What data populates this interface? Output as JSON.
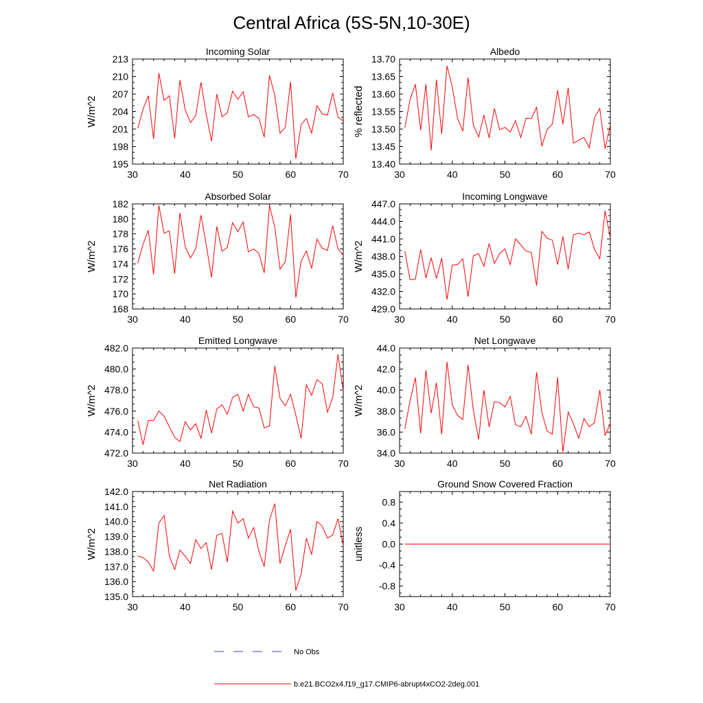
{
  "figure": {
    "title": "Central Africa (5S-5N,10-30E)",
    "line_color": "#ff0000",
    "obs_color": "#3a3acc",
    "legend": {
      "obs_label": "No Obs",
      "model_label": "b.e21.BCO2x4.f19_g17.CMIP6-abrupt4xCO2-2deg.001"
    }
  },
  "chart_data": [
    {
      "type": "line",
      "title": "Incoming Solar",
      "ylabel": "W/m^2",
      "xlim": [
        30,
        70
      ],
      "ylim": [
        195,
        213
      ],
      "xticks": [
        30,
        40,
        50,
        60,
        70
      ],
      "xtick_labels": [
        "30",
        "40",
        "50",
        "60",
        "70"
      ],
      "yticks": [
        195,
        198,
        201,
        204,
        207,
        210,
        213
      ],
      "ytick_labels": [
        "195",
        "198",
        "201",
        "204",
        "207",
        "210",
        "213"
      ],
      "x": [
        31,
        32,
        33,
        34,
        35,
        36,
        37,
        38,
        39,
        40,
        41,
        42,
        43,
        44,
        45,
        46,
        47,
        48,
        49,
        50,
        51,
        52,
        53,
        54,
        55,
        56,
        57,
        58,
        59,
        60,
        61,
        62,
        63,
        64,
        65,
        66,
        67,
        68,
        69,
        70
      ],
      "series": [
        {
          "name": "b.e21.BCO2x4.f19_g17.CMIP6-abrupt4xCO2-2deg.001",
          "values": [
            201.1,
            204.4,
            206.7,
            199.3,
            210.6,
            205.9,
            206.7,
            199.4,
            209.4,
            204.3,
            202.1,
            203.3,
            209.0,
            203.5,
            198.9,
            207.0,
            203.1,
            203.8,
            207.5,
            206.1,
            207.4,
            203.1,
            203.5,
            202.8,
            199.6,
            210.2,
            206.8,
            200.3,
            201.3,
            209.1,
            195.9,
            201.8,
            202.8,
            200.3,
            205.0,
            203.6,
            203.4,
            207.2,
            203.0,
            202.4
          ]
        }
      ]
    },
    {
      "type": "line",
      "title": "Albedo",
      "ylabel": "% reflected",
      "xlim": [
        30,
        70
      ],
      "ylim": [
        13.4,
        13.7
      ],
      "xticks": [
        30,
        40,
        50,
        60,
        70
      ],
      "xtick_labels": [
        "30",
        "40",
        "50",
        "60",
        "70"
      ],
      "yticks": [
        13.4,
        13.45,
        13.5,
        13.55,
        13.6,
        13.65,
        13.7
      ],
      "ytick_labels": [
        "13.40",
        "13.45",
        "13.50",
        "13.55",
        "13.60",
        "13.65",
        "13.70"
      ],
      "x": [
        31,
        32,
        33,
        34,
        35,
        36,
        37,
        38,
        39,
        40,
        41,
        42,
        43,
        44,
        45,
        46,
        47,
        48,
        49,
        50,
        51,
        52,
        53,
        54,
        55,
        56,
        57,
        58,
        59,
        60,
        61,
        62,
        63,
        64,
        65,
        66,
        67,
        68,
        69,
        70
      ],
      "series": [
        {
          "name": "b.e21.BCO2x4.f19_g17.CMIP6-abrupt4xCO2-2deg.001",
          "values": [
            13.503,
            13.585,
            13.628,
            13.497,
            13.628,
            13.439,
            13.641,
            13.486,
            13.681,
            13.621,
            13.531,
            13.494,
            13.647,
            13.512,
            13.477,
            13.54,
            13.475,
            13.559,
            13.498,
            13.505,
            13.491,
            13.524,
            13.476,
            13.531,
            13.53,
            13.562,
            13.451,
            13.499,
            13.514,
            13.611,
            13.514,
            13.618,
            13.46,
            13.468,
            13.476,
            13.447,
            13.533,
            13.559,
            13.444,
            13.511
          ]
        }
      ]
    },
    {
      "type": "line",
      "title": "Absorbed Solar",
      "ylabel": "W/m^2",
      "xlim": [
        30,
        70
      ],
      "ylim": [
        168,
        182
      ],
      "xticks": [
        30,
        40,
        50,
        60,
        70
      ],
      "xtick_labels": [
        "30",
        "40",
        "50",
        "60",
        "70"
      ],
      "yticks": [
        168,
        170,
        172,
        174,
        176,
        178,
        180,
        182
      ],
      "ytick_labels": [
        "168",
        "170",
        "172",
        "174",
        "176",
        "178",
        "180",
        "182"
      ],
      "x": [
        31,
        32,
        33,
        34,
        35,
        36,
        37,
        38,
        39,
        40,
        41,
        42,
        43,
        44,
        45,
        46,
        47,
        48,
        49,
        50,
        51,
        52,
        53,
        54,
        55,
        56,
        57,
        58,
        59,
        60,
        61,
        62,
        63,
        64,
        65,
        66,
        67,
        68,
        69,
        70
      ],
      "series": [
        {
          "name": "b.e21.BCO2x4.f19_g17.CMIP6-abrupt4xCO2-2deg.001",
          "values": [
            174.1,
            176.6,
            178.5,
            172.6,
            181.8,
            178.1,
            178.4,
            172.7,
            180.8,
            176.3,
            174.8,
            176.0,
            180.5,
            176.5,
            172.2,
            179.0,
            175.7,
            176.2,
            179.5,
            178.3,
            179.6,
            175.6,
            176.0,
            175.4,
            172.8,
            181.8,
            178.9,
            173.3,
            174.3,
            180.6,
            169.5,
            174.4,
            175.7,
            173.4,
            177.3,
            176.1,
            175.8,
            179.1,
            176.0,
            175.2
          ]
        }
      ]
    },
    {
      "type": "line",
      "title": "Incoming Longwave",
      "ylabel": "W/m^2",
      "xlim": [
        30,
        70
      ],
      "ylim": [
        429.0,
        447.0
      ],
      "xticks": [
        30,
        40,
        50,
        60,
        70
      ],
      "xtick_labels": [
        "30",
        "40",
        "50",
        "60",
        "70"
      ],
      "yticks": [
        429,
        432,
        435,
        438,
        441,
        444,
        447
      ],
      "ytick_labels": [
        "429.0",
        "432.0",
        "435.0",
        "438.0",
        "441.0",
        "444.0",
        "447.0"
      ],
      "x": [
        31,
        32,
        33,
        34,
        35,
        36,
        37,
        38,
        39,
        40,
        41,
        42,
        43,
        44,
        45,
        46,
        47,
        48,
        49,
        50,
        51,
        52,
        53,
        54,
        55,
        56,
        57,
        58,
        59,
        60,
        61,
        62,
        63,
        64,
        65,
        66,
        67,
        68,
        69,
        70
      ],
      "series": [
        {
          "name": "b.e21.BCO2x4.f19_g17.CMIP6-abrupt4xCO2-2deg.001",
          "values": [
            438.9,
            434.0,
            434.1,
            439.2,
            434.3,
            437.8,
            434.2,
            437.7,
            430.6,
            436.5,
            436.6,
            437.6,
            431.1,
            438.1,
            438.5,
            436.3,
            440.2,
            436.8,
            438.5,
            439.3,
            436.6,
            441.0,
            440.0,
            438.9,
            438.7,
            433.0,
            442.3,
            441.1,
            440.8,
            436.6,
            441.4,
            435.8,
            441.7,
            442.0,
            441.7,
            442.2,
            439.2,
            437.6,
            445.8,
            441.2
          ]
        }
      ]
    },
    {
      "type": "line",
      "title": "Emitted Longwave",
      "ylabel": "W/m^2",
      "xlim": [
        30,
        70
      ],
      "ylim": [
        472.0,
        482.0
      ],
      "xticks": [
        30,
        40,
        50,
        60,
        70
      ],
      "xtick_labels": [
        "30",
        "40",
        "50",
        "60",
        "70"
      ],
      "yticks": [
        472,
        474,
        476,
        478,
        480,
        482
      ],
      "ytick_labels": [
        "472.0",
        "474.0",
        "476.0",
        "478.0",
        "480.0",
        "482.0"
      ],
      "x": [
        31,
        32,
        33,
        34,
        35,
        36,
        37,
        38,
        39,
        40,
        41,
        42,
        43,
        44,
        45,
        46,
        47,
        48,
        49,
        50,
        51,
        52,
        53,
        54,
        55,
        56,
        57,
        58,
        59,
        60,
        61,
        62,
        63,
        64,
        65,
        66,
        67,
        68,
        69,
        70
      ],
      "series": [
        {
          "name": "b.e21.BCO2x4.f19_g17.CMIP6-abrupt4xCO2-2deg.001",
          "values": [
            475.1,
            472.8,
            475.1,
            475.1,
            476.0,
            475.5,
            474.5,
            473.5,
            473.1,
            475.0,
            474.2,
            474.8,
            473.4,
            476.1,
            473.9,
            476.2,
            476.6,
            475.7,
            477.3,
            477.6,
            476.0,
            477.6,
            476.4,
            476.3,
            474.4,
            474.6,
            480.3,
            477.2,
            476.5,
            477.6,
            475.6,
            473.4,
            478.5,
            477.5,
            479.0,
            478.6,
            475.9,
            477.3,
            481.4,
            477.9
          ]
        }
      ]
    },
    {
      "type": "line",
      "title": "Net Longwave",
      "ylabel": "W/m^2",
      "xlim": [
        30,
        70
      ],
      "ylim": [
        34.0,
        44.0
      ],
      "xticks": [
        30,
        40,
        50,
        60,
        70
      ],
      "xtick_labels": [
        "30",
        "40",
        "50",
        "60",
        "70"
      ],
      "yticks": [
        34,
        36,
        38,
        40,
        42,
        44
      ],
      "ytick_labels": [
        "34.0",
        "36.0",
        "38.0",
        "40.0",
        "42.0",
        "44.0"
      ],
      "x": [
        31,
        32,
        33,
        34,
        35,
        36,
        37,
        38,
        39,
        40,
        41,
        42,
        43,
        44,
        45,
        46,
        47,
        48,
        49,
        50,
        51,
        52,
        53,
        54,
        55,
        56,
        57,
        58,
        59,
        60,
        61,
        62,
        63,
        64,
        65,
        66,
        67,
        68,
        69,
        70
      ],
      "series": [
        {
          "name": "b.e21.BCO2x4.f19_g17.CMIP6-abrupt4xCO2-2deg.001",
          "values": [
            36.3,
            39.0,
            41.2,
            35.9,
            41.9,
            37.8,
            40.7,
            35.8,
            42.7,
            38.6,
            37.6,
            37.2,
            42.4,
            38.1,
            35.3,
            40.0,
            36.5,
            38.9,
            38.8,
            38.4,
            39.4,
            36.7,
            36.5,
            37.5,
            35.8,
            41.7,
            37.9,
            36.1,
            35.8,
            41.2,
            34.1,
            37.9,
            36.8,
            35.4,
            37.3,
            36.5,
            36.9,
            40.0,
            35.7,
            36.8
          ]
        }
      ]
    },
    {
      "type": "line",
      "title": "Net Radiation",
      "ylabel": "W/m^2",
      "xlim": [
        30,
        70
      ],
      "ylim": [
        135.0,
        142.0
      ],
      "xticks": [
        30,
        40,
        50,
        60,
        70
      ],
      "xtick_labels": [
        "30",
        "40",
        "50",
        "60",
        "70"
      ],
      "yticks": [
        135,
        136,
        137,
        138,
        139,
        140,
        141,
        142
      ],
      "ytick_labels": [
        "135.0",
        "136.0",
        "137.0",
        "138.0",
        "139.0",
        "140.0",
        "141.0",
        "142.0"
      ],
      "x": [
        31,
        32,
        33,
        34,
        35,
        36,
        37,
        38,
        39,
        40,
        41,
        42,
        43,
        44,
        45,
        46,
        47,
        48,
        49,
        50,
        51,
        52,
        53,
        54,
        55,
        56,
        57,
        58,
        59,
        60,
        61,
        62,
        63,
        64,
        65,
        66,
        67,
        68,
        69,
        70
      ],
      "series": [
        {
          "name": "b.e21.BCO2x4.f19_g17.CMIP6-abrupt4xCO2-2deg.001",
          "values": [
            137.7,
            137.6,
            137.3,
            136.7,
            139.9,
            140.4,
            137.7,
            136.8,
            138.1,
            137.7,
            137.2,
            138.8,
            138.2,
            138.6,
            136.8,
            139.1,
            139.2,
            137.3,
            140.7,
            139.9,
            140.2,
            138.9,
            139.6,
            138.0,
            137.0,
            140.1,
            141.2,
            137.2,
            138.4,
            139.5,
            135.4,
            136.5,
            138.9,
            137.8,
            140.0,
            139.7,
            138.9,
            139.1,
            140.2,
            138.4
          ]
        }
      ]
    },
    {
      "type": "line",
      "title": "Ground Snow Covered Fraction",
      "ylabel": "unitless",
      "xlim": [
        30,
        70
      ],
      "ylim": [
        -1.0,
        1.0
      ],
      "xticks": [
        30,
        40,
        50,
        60,
        70
      ],
      "xtick_labels": [
        "30",
        "40",
        "50",
        "60",
        "70"
      ],
      "yticks": [
        -0.8,
        -0.4,
        0.0,
        0.4,
        0.8
      ],
      "ytick_labels": [
        "-0.8",
        "-0.4",
        "0.0",
        "0.4",
        "0.8"
      ],
      "x": [
        31,
        32,
        33,
        34,
        35,
        36,
        37,
        38,
        39,
        40,
        41,
        42,
        43,
        44,
        45,
        46,
        47,
        48,
        49,
        50,
        51,
        52,
        53,
        54,
        55,
        56,
        57,
        58,
        59,
        60,
        61,
        62,
        63,
        64,
        65,
        66,
        67,
        68,
        69,
        70
      ],
      "series": [
        {
          "name": "b.e21.BCO2x4.f19_g17.CMIP6-abrupt4xCO2-2deg.001",
          "values": [
            0,
            0,
            0,
            0,
            0,
            0,
            0,
            0,
            0,
            0,
            0,
            0,
            0,
            0,
            0,
            0,
            0,
            0,
            0,
            0,
            0,
            0,
            0,
            0,
            0,
            0,
            0,
            0,
            0,
            0,
            0,
            0,
            0,
            0,
            0,
            0,
            0,
            0,
            0,
            0
          ]
        }
      ]
    }
  ]
}
